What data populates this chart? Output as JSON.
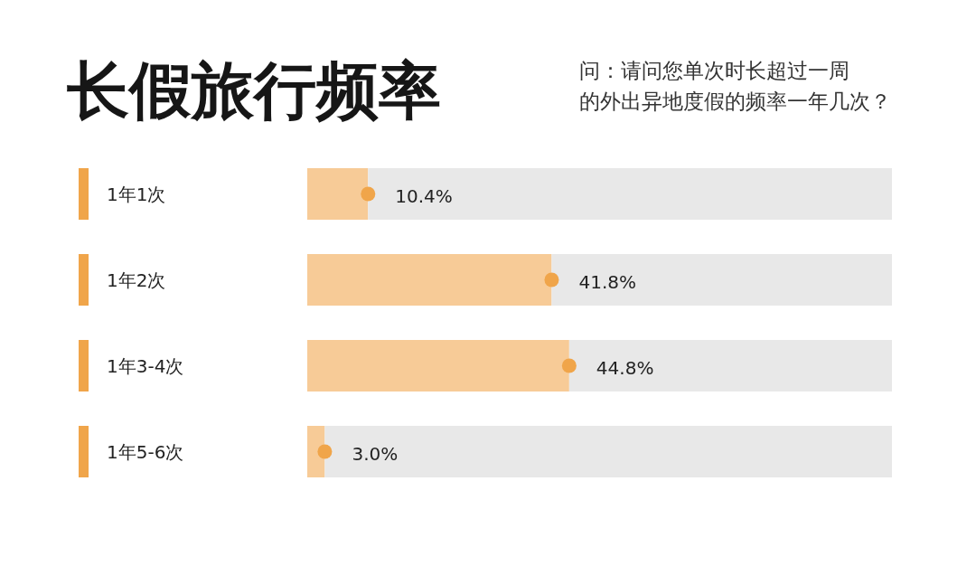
{
  "chart_data": {
    "type": "bar",
    "orientation": "horizontal",
    "stacked": true,
    "title": "长假旅行频率",
    "subtitle": "问：请问您单次时长超过一周的外出异地度假的频率一年几次？",
    "categories": [
      "1年1次",
      "1年2次",
      "1年3-4次",
      "1年5-6次"
    ],
    "xlim": [
      0,
      100
    ],
    "tick_labels": "y",
    "marker": "circle",
    "series": [
      {
        "type": "bar",
        "color": "#f7cb97",
        "values": [
          10.4,
          41.8,
          44.8,
          3.0
        ],
        "value_labels": [
          "10.4%",
          "41.8%",
          "44.8%",
          "3.0%"
        ]
      },
      {
        "type": "bar",
        "color": "#e8e8e8",
        "values": [
          89.6,
          58.2,
          55.2,
          97.0
        ]
      },
      {
        "type": "scatter",
        "color": "#f0a54a",
        "values": [
          10.4,
          41.8,
          44.8,
          3.0
        ]
      }
    ]
  }
}
